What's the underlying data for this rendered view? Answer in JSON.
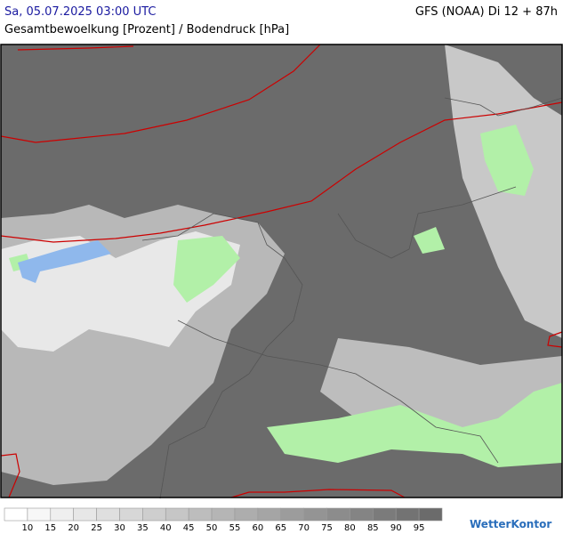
{
  "header": {
    "datetime": "Sa, 05.07.2025 03:00 UTC",
    "subtitle": "Gesamtbewoelkung [Prozent] / Bodendruck [hPa]",
    "model": "GFS (NOAA) Di 12 + 87h"
  },
  "legend": {
    "labels": [
      "10",
      "15",
      "20",
      "25",
      "30",
      "35",
      "40",
      "45",
      "50",
      "55",
      "60",
      "65",
      "70",
      "75",
      "80",
      "85",
      "90",
      "95"
    ],
    "colors": [
      "#ffffff",
      "#f7f7f7",
      "#efefef",
      "#e7e7e7",
      "#dfdfdf",
      "#d7d7d7",
      "#cecece",
      "#c6c6c6",
      "#bdbdbd",
      "#b5b5b5",
      "#adadad",
      "#a5a5a5",
      "#9c9c9c",
      "#949494",
      "#8c8c8c",
      "#848484",
      "#7b7b7b",
      "#737373",
      "#6b6b6b"
    ]
  },
  "logo": "WetterKontor"
}
